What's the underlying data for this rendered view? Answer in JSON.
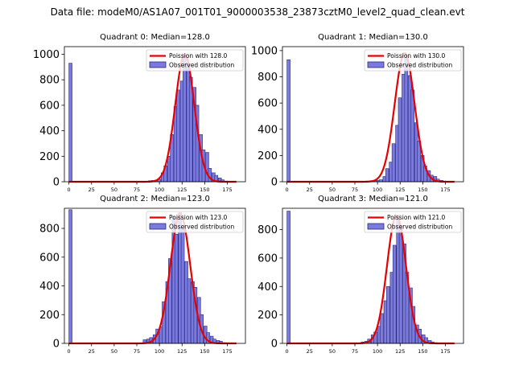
{
  "suptitle": "Data file: modeM0/AS1A07_001T01_9000003538_23873cztM0_level2_quad_clean.evt",
  "colors": {
    "bar_fill": "#7b7bdf",
    "bar_edge": "#2a2a7a",
    "curve": "#e80000",
    "background": "#ffffff"
  },
  "chart_data": [
    {
      "type": "bar",
      "quadrant": 0,
      "title": "Quadrant 0: Median=128.0",
      "median": 128.0,
      "xlim": [
        -5,
        195
      ],
      "ylim": [
        0,
        1060
      ],
      "xticks": [
        0,
        25,
        50,
        75,
        100,
        125,
        150,
        175
      ],
      "yticks": [
        0,
        200,
        400,
        600,
        800,
        1000
      ],
      "bin_width": 3.5,
      "legend": {
        "position": "top-right",
        "entries": [
          "Poission with 128.0",
          "Observed distribution"
        ]
      },
      "bins": [
        [
          0,
          930
        ],
        [
          78,
          3
        ],
        [
          81,
          3
        ],
        [
          84,
          3
        ],
        [
          88,
          8
        ],
        [
          91,
          10
        ],
        [
          95,
          12
        ],
        [
          98,
          20
        ],
        [
          102,
          70
        ],
        [
          105,
          125
        ],
        [
          109,
          200
        ],
        [
          112,
          370
        ],
        [
          116,
          590
        ],
        [
          119,
          720
        ],
        [
          123,
          790
        ],
        [
          126,
          1000
        ],
        [
          130,
          930
        ],
        [
          133,
          820
        ],
        [
          137,
          740
        ],
        [
          140,
          600
        ],
        [
          144,
          370
        ],
        [
          147,
          250
        ],
        [
          151,
          230
        ],
        [
          154,
          105
        ],
        [
          158,
          70
        ],
        [
          161,
          50
        ],
        [
          165,
          30
        ],
        [
          168,
          15
        ],
        [
          172,
          5
        ],
        [
          175,
          3
        ]
      ],
      "curve": {
        "label": "Poission with 128.0",
        "mean": 128.0,
        "peak": 1000,
        "sigma": 10.5,
        "x_range": [
          0,
          185
        ]
      }
    },
    {
      "type": "bar",
      "quadrant": 1,
      "title": "Quadrant 1: Median=130.0",
      "median": 130.0,
      "xlim": [
        -5,
        195
      ],
      "ylim": [
        0,
        1030
      ],
      "xticks": [
        0,
        25,
        50,
        75,
        100,
        125,
        150,
        175
      ],
      "yticks": [
        0,
        200,
        400,
        600,
        800,
        1000
      ],
      "bin_width": 3.5,
      "legend": {
        "position": "top-right",
        "entries": [
          "Poission with 130.0",
          "Observed distribution"
        ]
      },
      "bins": [
        [
          0,
          930
        ],
        [
          85,
          3
        ],
        [
          88,
          5
        ],
        [
          92,
          8
        ],
        [
          95,
          10
        ],
        [
          99,
          10
        ],
        [
          102,
          15
        ],
        [
          106,
          40
        ],
        [
          109,
          100
        ],
        [
          113,
          150
        ],
        [
          116,
          290
        ],
        [
          120,
          430
        ],
        [
          123,
          640
        ],
        [
          127,
          820
        ],
        [
          130,
          960
        ],
        [
          134,
          810
        ],
        [
          137,
          700
        ],
        [
          141,
          450
        ],
        [
          144,
          310
        ],
        [
          148,
          200
        ],
        [
          151,
          120
        ],
        [
          155,
          85
        ],
        [
          158,
          50
        ],
        [
          162,
          40
        ],
        [
          165,
          20
        ],
        [
          169,
          10
        ],
        [
          172,
          5
        ]
      ],
      "curve": {
        "label": "Poission with 130.0",
        "mean": 130.0,
        "peak": 980,
        "sigma": 11.0,
        "x_range": [
          0,
          185
        ]
      }
    },
    {
      "type": "bar",
      "quadrant": 2,
      "title": "Quadrant 2: Median=123.0",
      "median": 123.0,
      "xlim": [
        -5,
        195
      ],
      "ylim": [
        0,
        940
      ],
      "xticks": [
        0,
        25,
        50,
        75,
        100,
        125,
        150,
        175
      ],
      "yticks": [
        0,
        200,
        400,
        600,
        800
      ],
      "bin_width": 3.5,
      "legend": {
        "position": "top-right",
        "entries": [
          "Poission with 123.0",
          "Observed distribution"
        ]
      },
      "bins": [
        [
          0,
          930
        ],
        [
          82,
          25
        ],
        [
          86,
          30
        ],
        [
          89,
          40
        ],
        [
          93,
          60
        ],
        [
          96,
          100
        ],
        [
          100,
          115
        ],
        [
          103,
          290
        ],
        [
          107,
          430
        ],
        [
          110,
          590
        ],
        [
          114,
          880
        ],
        [
          117,
          760
        ],
        [
          121,
          910
        ],
        [
          124,
          800
        ],
        [
          128,
          570
        ],
        [
          131,
          450
        ],
        [
          135,
          430
        ],
        [
          138,
          390
        ],
        [
          142,
          320
        ],
        [
          145,
          200
        ],
        [
          149,
          120
        ],
        [
          152,
          75
        ],
        [
          156,
          50
        ],
        [
          159,
          30
        ],
        [
          163,
          20
        ],
        [
          166,
          15
        ],
        [
          170,
          5
        ],
        [
          173,
          3
        ]
      ],
      "curve": {
        "label": "Poission with 123.0",
        "mean": 123.0,
        "peak": 900,
        "sigma": 11.0,
        "x_range": [
          0,
          185
        ]
      }
    },
    {
      "type": "bar",
      "quadrant": 3,
      "title": "Quadrant 3: Median=121.0",
      "median": 121.0,
      "xlim": [
        -5,
        195
      ],
      "ylim": [
        0,
        950
      ],
      "xticks": [
        0,
        25,
        50,
        75,
        100,
        125,
        150,
        175
      ],
      "yticks": [
        0,
        200,
        400,
        600,
        800
      ],
      "bin_width": 3.5,
      "legend": {
        "position": "top-right",
        "entries": [
          "Poission with 121.0",
          "Observed distribution"
        ]
      },
      "bins": [
        [
          0,
          930
        ],
        [
          82,
          10
        ],
        [
          86,
          15
        ],
        [
          89,
          30
        ],
        [
          93,
          60
        ],
        [
          96,
          80
        ],
        [
          100,
          120
        ],
        [
          103,
          210
        ],
        [
          107,
          300
        ],
        [
          110,
          400
        ],
        [
          114,
          500
        ],
        [
          117,
          690
        ],
        [
          121,
          900
        ],
        [
          124,
          810
        ],
        [
          128,
          700
        ],
        [
          131,
          500
        ],
        [
          135,
          390
        ],
        [
          138,
          260
        ],
        [
          142,
          130
        ],
        [
          145,
          100
        ],
        [
          149,
          60
        ],
        [
          152,
          40
        ],
        [
          156,
          20
        ],
        [
          159,
          10
        ],
        [
          163,
          5
        ],
        [
          166,
          3
        ]
      ],
      "curve": {
        "label": "Poission with 121.0",
        "mean": 121.0,
        "peak": 900,
        "sigma": 10.5,
        "x_range": [
          0,
          185
        ]
      }
    }
  ]
}
